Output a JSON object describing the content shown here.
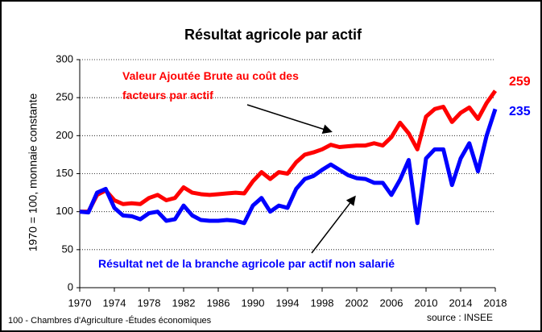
{
  "chart_data": {
    "type": "line",
    "title": "Résultat agricole par actif",
    "y_label": "1970 = 100, monnaie constante",
    "footer": "100 - Chambres d'Agriculture -Études économiques",
    "source": "source : INSEE",
    "x": [
      1970,
      1971,
      1972,
      1973,
      1974,
      1975,
      1976,
      1977,
      1978,
      1979,
      1980,
      1981,
      1982,
      1983,
      1984,
      1985,
      1986,
      1987,
      1988,
      1989,
      1990,
      1991,
      1992,
      1993,
      1994,
      1995,
      1996,
      1997,
      1998,
      1999,
      2000,
      2001,
      2002,
      2003,
      2004,
      2005,
      2006,
      2007,
      2008,
      2009,
      2010,
      2011,
      2012,
      2013,
      2014,
      2015,
      2016,
      2017,
      2018
    ],
    "xlim": [
      1970,
      2018
    ],
    "xticks": [
      1970,
      1974,
      1978,
      1982,
      1986,
      1990,
      1994,
      1998,
      2002,
      2006,
      2010,
      2014,
      2018
    ],
    "ylim": [
      0,
      300
    ],
    "yticks": [
      0,
      50,
      100,
      150,
      200,
      250,
      300
    ],
    "grid": true,
    "series": [
      {
        "name": "Valeur Ajoutée Brute au coût des facteurs par actif",
        "color": "#ff0000",
        "values": [
          100,
          100,
          122,
          128,
          115,
          110,
          111,
          110,
          118,
          122,
          115,
          118,
          132,
          125,
          123,
          122,
          123,
          124,
          125,
          124,
          140,
          152,
          143,
          152,
          150,
          165,
          175,
          178,
          182,
          188,
          185,
          186,
          187,
          187,
          190,
          187,
          198,
          217,
          203,
          182,
          225,
          235,
          238,
          218,
          230,
          237,
          222,
          243,
          259
        ]
      },
      {
        "name": "Résultat net de la branche agricole par actif non salarié",
        "color": "#0000ff",
        "values": [
          100,
          99,
          125,
          130,
          105,
          95,
          94,
          90,
          98,
          100,
          88,
          90,
          108,
          95,
          89,
          88,
          88,
          89,
          88,
          85,
          108,
          118,
          100,
          108,
          105,
          130,
          143,
          147,
          155,
          162,
          155,
          148,
          144,
          143,
          138,
          138,
          122,
          142,
          168,
          85,
          170,
          182,
          182,
          135,
          170,
          190,
          153,
          200,
          235
        ]
      }
    ]
  }
}
